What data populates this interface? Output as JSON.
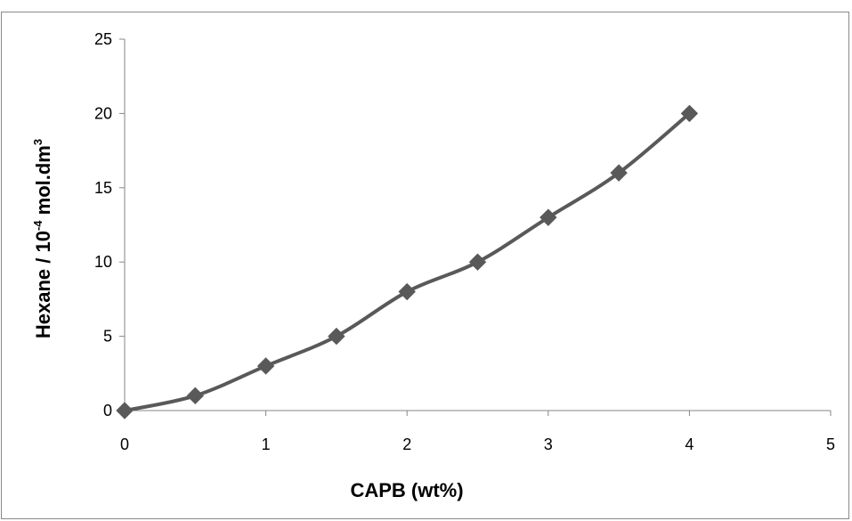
{
  "chart_data": {
    "type": "line",
    "title": "",
    "xlabel": "CAPB (wt%)",
    "ylabel": {
      "main": "Hexane / 10",
      "exp": "-4",
      "unit": " mol.dm",
      "unit_exp": "3"
    },
    "xlim": [
      0,
      5
    ],
    "ylim": [
      0,
      25
    ],
    "x_ticks": [
      0,
      1,
      2,
      3,
      4,
      5
    ],
    "y_ticks": [
      0,
      5,
      10,
      15,
      20,
      25
    ],
    "grid": false,
    "legend": "none",
    "series": [
      {
        "x": [
          0,
          0.5,
          1,
          1.5,
          2,
          2.5,
          3,
          3.5,
          4
        ],
        "y": [
          0,
          1,
          3,
          5,
          8,
          10,
          13,
          16,
          20
        ],
        "marker": "diamond",
        "color": "#595959"
      }
    ]
  }
}
